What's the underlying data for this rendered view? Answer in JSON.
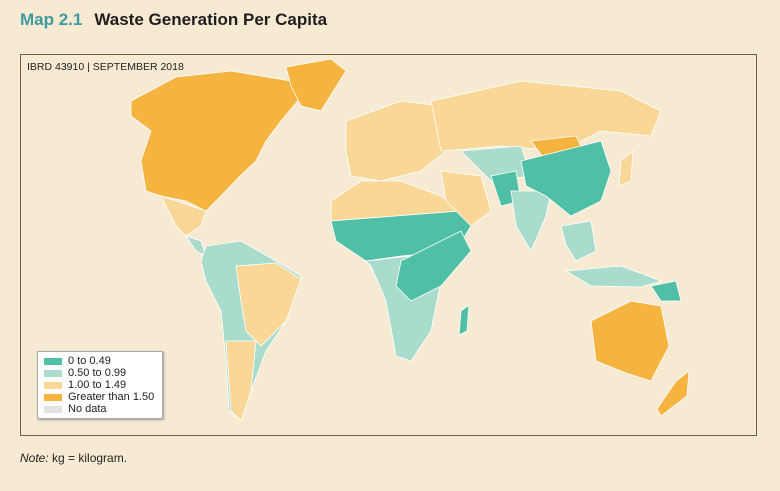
{
  "title": {
    "number": "Map 2.1",
    "text": "Waste Generation Per Capita"
  },
  "map_id": "IBRD 43910 | SEPTEMBER 2018",
  "legend": [
    {
      "label": "0 to 0.49",
      "color": "#4fbfa6"
    },
    {
      "label": "0.50 to 0.99",
      "color": "#a9dccd"
    },
    {
      "label": "1.00 to 1.49",
      "color": "#f9d797"
    },
    {
      "label": "Greater than 1.50",
      "color": "#f5b440"
    },
    {
      "label": "No data",
      "color": "#e2e2df"
    }
  ],
  "note": {
    "label": "Note:",
    "text": " kg = kilogram."
  }
}
